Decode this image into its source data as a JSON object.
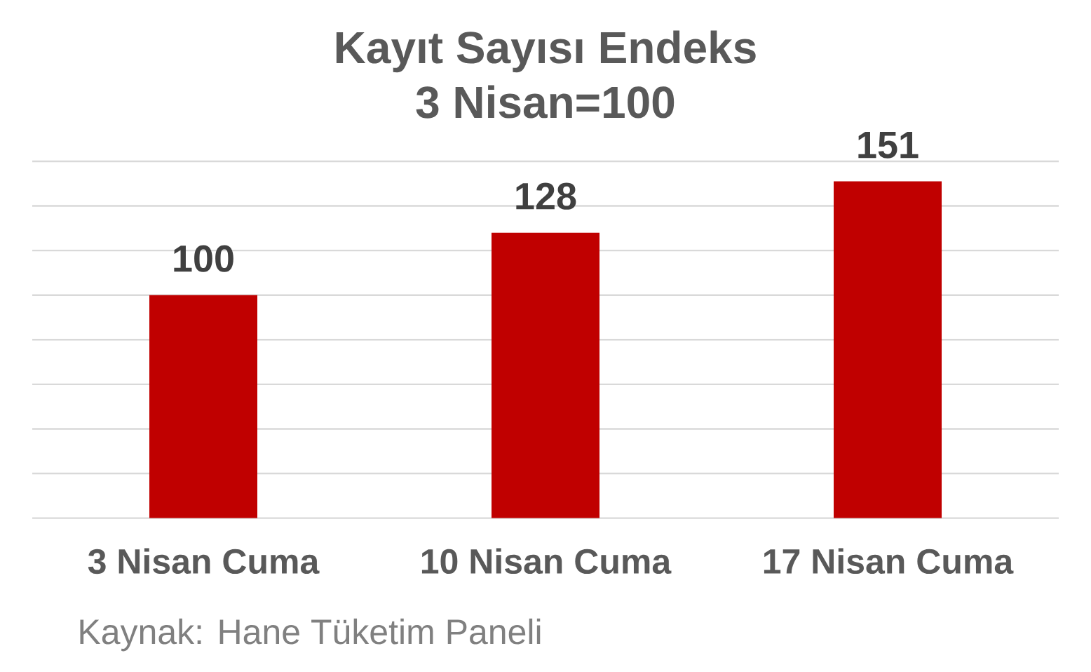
{
  "chart_data": {
    "type": "bar",
    "title": "Kayıt Sayısı Endeks",
    "subtitle": "3 Nisan=100",
    "categories": [
      "3 Nisan Cuma",
      "10 Nisan Cuma",
      "17 Nisan Cuma"
    ],
    "values": [
      100,
      128,
      151
    ],
    "color": "#c00000",
    "data_labels": true,
    "ylim": [
      0,
      160
    ],
    "yticks": [
      {
        "value": 0,
        "label": null
      },
      {
        "value": 20,
        "label": null
      },
      {
        "value": 40,
        "label": null
      },
      {
        "value": 60,
        "label": null
      },
      {
        "value": 80,
        "label": null
      },
      {
        "value": 100,
        "label": null
      },
      {
        "value": 120,
        "label": null
      },
      {
        "value": 140,
        "label": null
      },
      {
        "value": 160,
        "label": null
      }
    ],
    "grid": "y",
    "tick_labels": "x",
    "annotations": [
      "Kaynak: Hane Tüketim Paneli"
    ]
  }
}
